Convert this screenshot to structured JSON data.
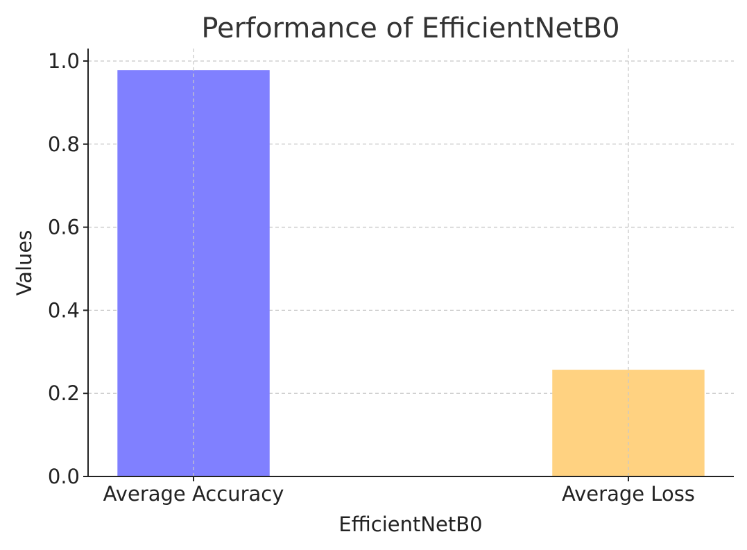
{
  "chart_data": {
    "type": "bar",
    "title": "Performance of EfficientNetB0",
    "xlabel": "EfficientNetB0",
    "ylabel": "Values",
    "categories": [
      "Average Accuracy",
      "Average Loss"
    ],
    "values": [
      0.978,
      0.257
    ],
    "bar_colors": [
      "#8080ff",
      "#ffd281"
    ],
    "ylim": [
      0,
      1.03
    ],
    "yticks": [
      0.0,
      0.2,
      0.4,
      0.6,
      0.8,
      1.0
    ],
    "ytick_labels": [
      "0.0",
      "0.2",
      "0.4",
      "0.6",
      "0.8",
      "1.0"
    ],
    "grid": true,
    "legend": "none"
  }
}
